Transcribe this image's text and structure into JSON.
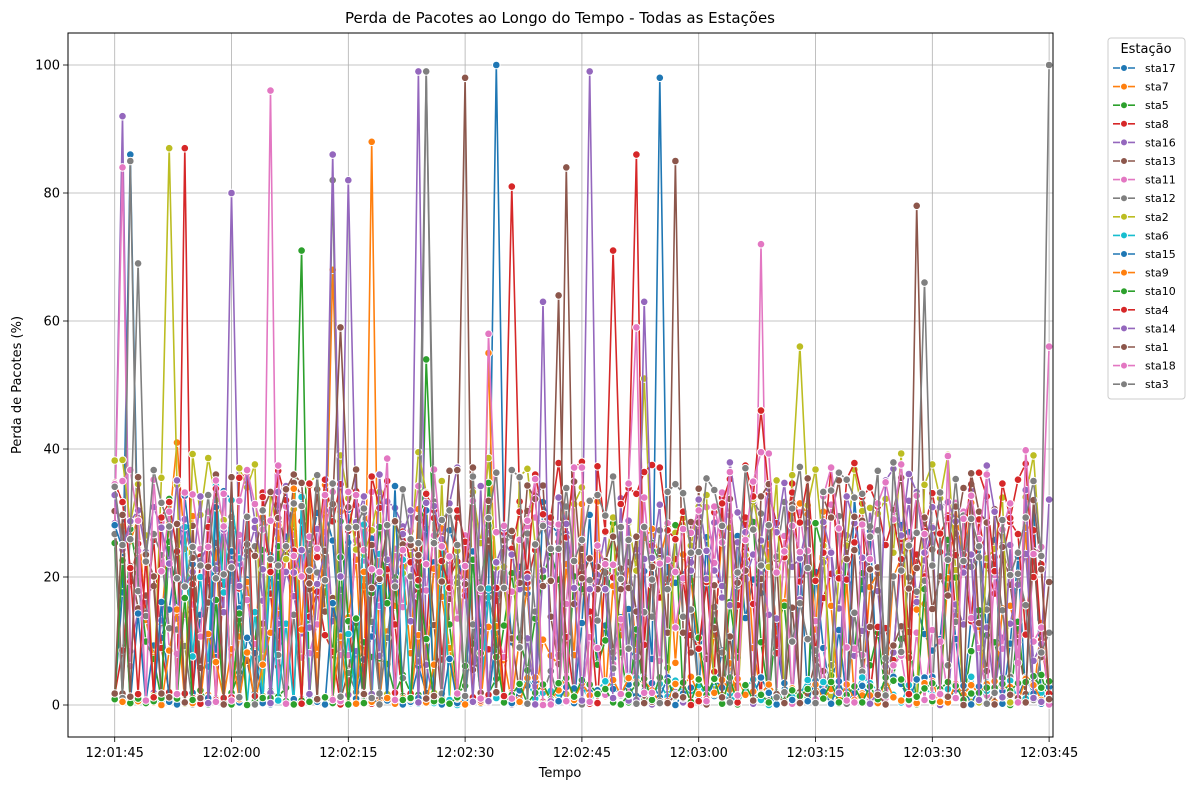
{
  "chart_data": {
    "type": "line",
    "title": "Perda de Pacotes ao Longo do Tempo - Todas as Estações",
    "xlabel": "Tempo",
    "ylabel": "Perda de Pacotes (%)",
    "x_tick_labels": [
      "12:01:45",
      "12:02:00",
      "12:02:15",
      "12:02:30",
      "12:02:45",
      "12:03:00",
      "12:03:15",
      "12:03:30",
      "12:03:45"
    ],
    "x_tick_seconds": [
      0,
      15,
      30,
      45,
      60,
      75,
      90,
      105,
      120
    ],
    "x_range_seconds": [
      -6,
      120.5
    ],
    "x_start": "12:01:45",
    "x_end": "12:03:45",
    "ylim": [
      -5,
      105
    ],
    "y_ticks": [
      0,
      20,
      40,
      60,
      80,
      100
    ],
    "grid": true,
    "marker": "circle",
    "legend": {
      "title": "Estação",
      "placement": "outside-top-right"
    },
    "series": [
      {
        "name": "sta17",
        "color": "#1f77b4",
        "pattern": "spiky",
        "peaks": [
          [
            2,
            86
          ],
          [
            49,
            100
          ],
          [
            70,
            98
          ]
        ],
        "base": 20,
        "amp": 14,
        "seed": 17
      },
      {
        "name": "sta7",
        "color": "#ff7f0e",
        "pattern": "spiky",
        "peaks": [
          [
            8,
            41
          ],
          [
            28,
            68
          ],
          [
            33,
            88
          ],
          [
            48,
            55
          ]
        ],
        "base": 20,
        "amp": 14,
        "seed": 7
      },
      {
        "name": "sta5",
        "color": "#2ca02c",
        "pattern": "spiky",
        "peaks": [
          [
            24,
            71
          ],
          [
            40,
            54
          ]
        ],
        "base": 15,
        "amp": 14,
        "seed": 5
      },
      {
        "name": "sta8",
        "color": "#d62728",
        "pattern": "spiky",
        "peaks": [
          [
            9,
            87
          ],
          [
            67,
            86
          ],
          [
            51,
            81
          ]
        ],
        "base": 20,
        "amp": 15,
        "seed": 8
      },
      {
        "name": "sta16",
        "color": "#9467bd",
        "pattern": "spiky",
        "peaks": [
          [
            1,
            92
          ],
          [
            15,
            80
          ],
          [
            39,
            99
          ],
          [
            61,
            99
          ]
        ],
        "base": 20,
        "amp": 14,
        "seed": 16
      },
      {
        "name": "sta13",
        "color": "#8c564b",
        "pattern": "spiky",
        "peaks": [
          [
            45,
            98
          ],
          [
            58,
            84
          ],
          [
            72,
            85
          ],
          [
            103,
            78
          ]
        ],
        "base": 20,
        "amp": 15,
        "seed": 13
      },
      {
        "name": "sta11",
        "color": "#e377c2",
        "pattern": "spiky",
        "peaks": [
          [
            1,
            84
          ],
          [
            20,
            96
          ],
          [
            83,
            72
          ]
        ],
        "base": 20,
        "amp": 14,
        "seed": 11
      },
      {
        "name": "sta12",
        "color": "#7f7f7f",
        "pattern": "spiky",
        "peaks": [
          [
            2,
            85
          ],
          [
            28,
            82
          ],
          [
            40,
            99
          ]
        ],
        "base": 18,
        "amp": 14,
        "seed": 12
      },
      {
        "name": "sta2",
        "color": "#bcbd22",
        "pattern": "spiky",
        "peaks": [
          [
            7,
            87
          ],
          [
            68,
            51
          ],
          [
            88,
            56
          ]
        ],
        "base": 30,
        "amp": 10,
        "seed": 2
      },
      {
        "name": "sta6",
        "color": "#17becf",
        "pattern": "low",
        "seed": 6
      },
      {
        "name": "sta15",
        "color": "#1f77b4",
        "pattern": "low",
        "seed": 15
      },
      {
        "name": "sta9",
        "color": "#ff7f0e",
        "pattern": "low",
        "seed": 9
      },
      {
        "name": "sta10",
        "color": "#2ca02c",
        "pattern": "low",
        "seed": 10
      },
      {
        "name": "sta4",
        "color": "#d62728",
        "pattern": "spiky",
        "peaks": [
          [
            64,
            71
          ],
          [
            83,
            46
          ]
        ],
        "base": 28,
        "amp": 10,
        "seed": 4
      },
      {
        "name": "sta14",
        "color": "#9467bd",
        "pattern": "spiky",
        "peaks": [
          [
            28,
            86
          ],
          [
            30,
            82
          ],
          [
            55,
            63
          ],
          [
            68,
            63
          ]
        ],
        "base": 28,
        "amp": 10,
        "seed": 14
      },
      {
        "name": "sta1",
        "color": "#8c564b",
        "pattern": "spiky",
        "peaks": [
          [
            29,
            59
          ],
          [
            57,
            64
          ]
        ],
        "base": 28,
        "amp": 10,
        "seed": 1
      },
      {
        "name": "sta18",
        "color": "#e377c2",
        "pattern": "spiky",
        "peaks": [
          [
            48,
            58
          ],
          [
            67,
            59
          ],
          [
            120,
            56
          ]
        ],
        "base": 30,
        "amp": 10,
        "seed": 18
      },
      {
        "name": "sta3",
        "color": "#7f7f7f",
        "pattern": "spiky",
        "peaks": [
          [
            3,
            69
          ],
          [
            40,
            99
          ],
          [
            104,
            66
          ],
          [
            120,
            100
          ]
        ],
        "base": 28,
        "amp": 10,
        "seed": 3
      }
    ]
  }
}
